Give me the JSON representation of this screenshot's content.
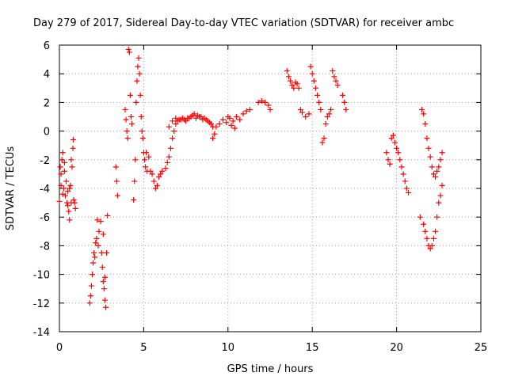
{
  "chart_data": {
    "type": "scatter",
    "title": "Day 279 of 2017, Sidereal Day-to-day VTEC variation (SDTVAR) for receiver ambc",
    "xlabel": "GPS time / hours",
    "ylabel": "SDTVAR / TECUs",
    "xlim": [
      0,
      25
    ],
    "ylim": [
      -14,
      6
    ],
    "xticks": [
      0,
      5,
      10,
      15,
      20,
      25
    ],
    "yticks": [
      -14,
      -12,
      -10,
      -8,
      -6,
      -4,
      -2,
      0,
      2,
      4,
      6
    ],
    "grid": true,
    "marker": "+",
    "color": "#ff0000",
    "series": [
      {
        "name": "SDTVAR",
        "points": [
          [
            0.0,
            -4.9
          ],
          [
            0.05,
            -2.5
          ],
          [
            0.1,
            -3.0
          ],
          [
            0.15,
            -2.0
          ],
          [
            0.2,
            -1.5
          ],
          [
            0.25,
            -4.0
          ],
          [
            0.3,
            -2.2
          ],
          [
            0.35,
            -4.5
          ],
          [
            0.4,
            -3.5
          ],
          [
            0.45,
            -5.0
          ],
          [
            0.5,
            -4.2
          ],
          [
            0.55,
            -5.6
          ],
          [
            0.6,
            -6.2
          ],
          [
            0.65,
            -3.8
          ],
          [
            0.7,
            -5.0
          ],
          [
            0.75,
            -2.5
          ],
          [
            0.8,
            -1.2
          ],
          [
            0.82,
            -0.6
          ],
          [
            0.85,
            -4.8
          ],
          [
            0.9,
            -5.0
          ],
          [
            0.95,
            -5.4
          ],
          [
            0.1,
            -3.8
          ],
          [
            0.2,
            -4.4
          ],
          [
            0.3,
            -2.8
          ],
          [
            0.5,
            -5.2
          ],
          [
            0.6,
            -4.0
          ],
          [
            0.7,
            -2.0
          ],
          [
            1.8,
            -12.0
          ],
          [
            1.85,
            -11.5
          ],
          [
            1.9,
            -10.8
          ],
          [
            1.95,
            -10.0
          ],
          [
            2.0,
            -9.2
          ],
          [
            2.05,
            -8.5
          ],
          [
            2.1,
            -8.8
          ],
          [
            2.15,
            -7.8
          ],
          [
            2.2,
            -7.5
          ],
          [
            2.25,
            -6.2
          ],
          [
            2.3,
            -8.0
          ],
          [
            2.35,
            -7.0
          ],
          [
            2.45,
            -6.3
          ],
          [
            2.5,
            -8.5
          ],
          [
            2.55,
            -9.5
          ],
          [
            2.6,
            -10.5
          ],
          [
            2.65,
            -11.0
          ],
          [
            2.7,
            -11.8
          ],
          [
            2.75,
            -12.3
          ],
          [
            2.8,
            -8.5
          ],
          [
            2.85,
            -5.9
          ],
          [
            2.7,
            -10.2
          ],
          [
            2.6,
            -7.2
          ],
          [
            3.35,
            -2.5
          ],
          [
            3.4,
            -3.5
          ],
          [
            3.45,
            -4.5
          ],
          [
            3.9,
            1.5
          ],
          [
            3.95,
            0.8
          ],
          [
            4.0,
            0.0
          ],
          [
            4.05,
            -0.5
          ],
          [
            4.1,
            5.7
          ],
          [
            4.15,
            5.5
          ],
          [
            4.2,
            2.5
          ],
          [
            4.25,
            1.0
          ],
          [
            4.3,
            0.5
          ],
          [
            4.4,
            -4.8
          ],
          [
            4.45,
            -3.5
          ],
          [
            4.5,
            -2.0
          ],
          [
            4.55,
            2.0
          ],
          [
            4.6,
            3.5
          ],
          [
            4.65,
            4.5
          ],
          [
            4.7,
            5.1
          ],
          [
            4.75,
            4.0
          ],
          [
            4.8,
            2.5
          ],
          [
            4.85,
            1.0
          ],
          [
            4.9,
            0.0
          ],
          [
            4.95,
            -0.5
          ],
          [
            5.0,
            -1.5
          ],
          [
            5.05,
            -2.0
          ],
          [
            5.1,
            -2.5
          ],
          [
            5.15,
            -1.5
          ],
          [
            5.2,
            -2.8
          ],
          [
            5.3,
            -1.8
          ],
          [
            5.4,
            -2.8
          ],
          [
            5.5,
            -3.0
          ],
          [
            5.6,
            -3.5
          ],
          [
            5.7,
            -4.0
          ],
          [
            5.8,
            -3.8
          ],
          [
            5.9,
            -3.2
          ],
          [
            6.0,
            -3.0
          ],
          [
            6.1,
            -2.8
          ],
          [
            6.3,
            -2.6
          ],
          [
            6.4,
            -2.2
          ],
          [
            6.5,
            -1.8
          ],
          [
            6.6,
            -1.2
          ],
          [
            6.7,
            -0.5
          ],
          [
            6.8,
            0.0
          ],
          [
            6.9,
            0.5
          ],
          [
            7.0,
            0.7
          ],
          [
            7.2,
            0.8
          ],
          [
            7.4,
            0.8
          ],
          [
            7.6,
            0.9
          ],
          [
            7.8,
            1.0
          ],
          [
            8.0,
            1.2
          ],
          [
            8.2,
            1.1
          ],
          [
            8.4,
            1.0
          ],
          [
            8.6,
            0.9
          ],
          [
            8.8,
            0.7
          ],
          [
            9.0,
            0.5
          ],
          [
            9.1,
            0.3
          ],
          [
            6.5,
            0.3
          ],
          [
            6.7,
            0.7
          ],
          [
            6.9,
            0.9
          ],
          [
            7.1,
            0.8
          ],
          [
            7.3,
            0.9
          ],
          [
            7.5,
            0.7
          ],
          [
            7.7,
            0.9
          ],
          [
            7.9,
            1.1
          ],
          [
            8.1,
            0.9
          ],
          [
            8.3,
            1.0
          ],
          [
            8.5,
            0.8
          ],
          [
            8.7,
            0.8
          ],
          [
            8.9,
            0.6
          ],
          [
            9.1,
            -0.5
          ],
          [
            9.2,
            -0.2
          ],
          [
            9.3,
            0.3
          ],
          [
            9.5,
            0.5
          ],
          [
            9.7,
            0.8
          ],
          [
            9.9,
            0.6
          ],
          [
            10.1,
            0.9
          ],
          [
            10.3,
            0.7
          ],
          [
            10.5,
            1.0
          ],
          [
            10.7,
            0.8
          ],
          [
            10.9,
            1.2
          ],
          [
            11.1,
            1.4
          ],
          [
            11.3,
            1.5
          ],
          [
            10.0,
            1.0
          ],
          [
            10.2,
            0.4
          ],
          [
            10.4,
            0.2
          ],
          [
            11.8,
            2.0
          ],
          [
            12.0,
            2.1
          ],
          [
            12.2,
            2.0
          ],
          [
            12.4,
            1.8
          ],
          [
            12.5,
            1.5
          ],
          [
            13.5,
            4.2
          ],
          [
            13.6,
            3.8
          ],
          [
            13.7,
            3.5
          ],
          [
            13.8,
            3.2
          ],
          [
            13.9,
            3.0
          ],
          [
            14.0,
            3.4
          ],
          [
            14.1,
            3.3
          ],
          [
            14.2,
            3.0
          ],
          [
            14.3,
            1.5
          ],
          [
            14.4,
            1.3
          ],
          [
            14.6,
            1.0
          ],
          [
            14.8,
            1.2
          ],
          [
            14.9,
            4.5
          ],
          [
            15.0,
            4.0
          ],
          [
            15.1,
            3.5
          ],
          [
            15.2,
            3.0
          ],
          [
            15.3,
            2.5
          ],
          [
            15.4,
            2.0
          ],
          [
            15.5,
            1.5
          ],
          [
            15.6,
            -0.8
          ],
          [
            15.7,
            -0.5
          ],
          [
            15.8,
            0.5
          ],
          [
            15.9,
            1.0
          ],
          [
            16.0,
            1.2
          ],
          [
            16.1,
            1.5
          ],
          [
            16.2,
            4.2
          ],
          [
            16.3,
            3.8
          ],
          [
            16.4,
            3.5
          ],
          [
            16.5,
            3.2
          ],
          [
            16.8,
            2.5
          ],
          [
            16.9,
            2.0
          ],
          [
            17.0,
            1.5
          ],
          [
            19.4,
            -1.5
          ],
          [
            19.5,
            -2.0
          ],
          [
            19.6,
            -2.3
          ],
          [
            19.7,
            -0.5
          ],
          [
            19.8,
            -0.3
          ],
          [
            19.9,
            -0.8
          ],
          [
            20.0,
            -1.2
          ],
          [
            20.1,
            -1.5
          ],
          [
            20.2,
            -2.0
          ],
          [
            20.3,
            -2.5
          ],
          [
            20.4,
            -3.0
          ],
          [
            20.5,
            -3.5
          ],
          [
            20.6,
            -4.0
          ],
          [
            20.7,
            -4.3
          ],
          [
            21.4,
            -6.0
          ],
          [
            21.5,
            1.5
          ],
          [
            21.6,
            -6.5
          ],
          [
            21.7,
            -7.0
          ],
          [
            21.8,
            -7.5
          ],
          [
            21.9,
            -8.0
          ],
          [
            22.0,
            -8.2
          ],
          [
            22.1,
            -8.0
          ],
          [
            22.2,
            -7.5
          ],
          [
            22.3,
            -7.0
          ],
          [
            22.4,
            -6.0
          ],
          [
            22.5,
            -5.0
          ],
          [
            22.6,
            -4.5
          ],
          [
            22.7,
            -3.8
          ],
          [
            21.6,
            1.2
          ],
          [
            21.7,
            0.5
          ],
          [
            21.8,
            -0.5
          ],
          [
            21.9,
            -1.2
          ],
          [
            22.0,
            -1.8
          ],
          [
            22.1,
            -2.5
          ],
          [
            22.2,
            -3.0
          ],
          [
            22.3,
            -3.2
          ],
          [
            22.4,
            -2.8
          ],
          [
            22.5,
            -2.5
          ],
          [
            22.6,
            -2.0
          ],
          [
            22.7,
            -1.5
          ]
        ]
      }
    ]
  }
}
